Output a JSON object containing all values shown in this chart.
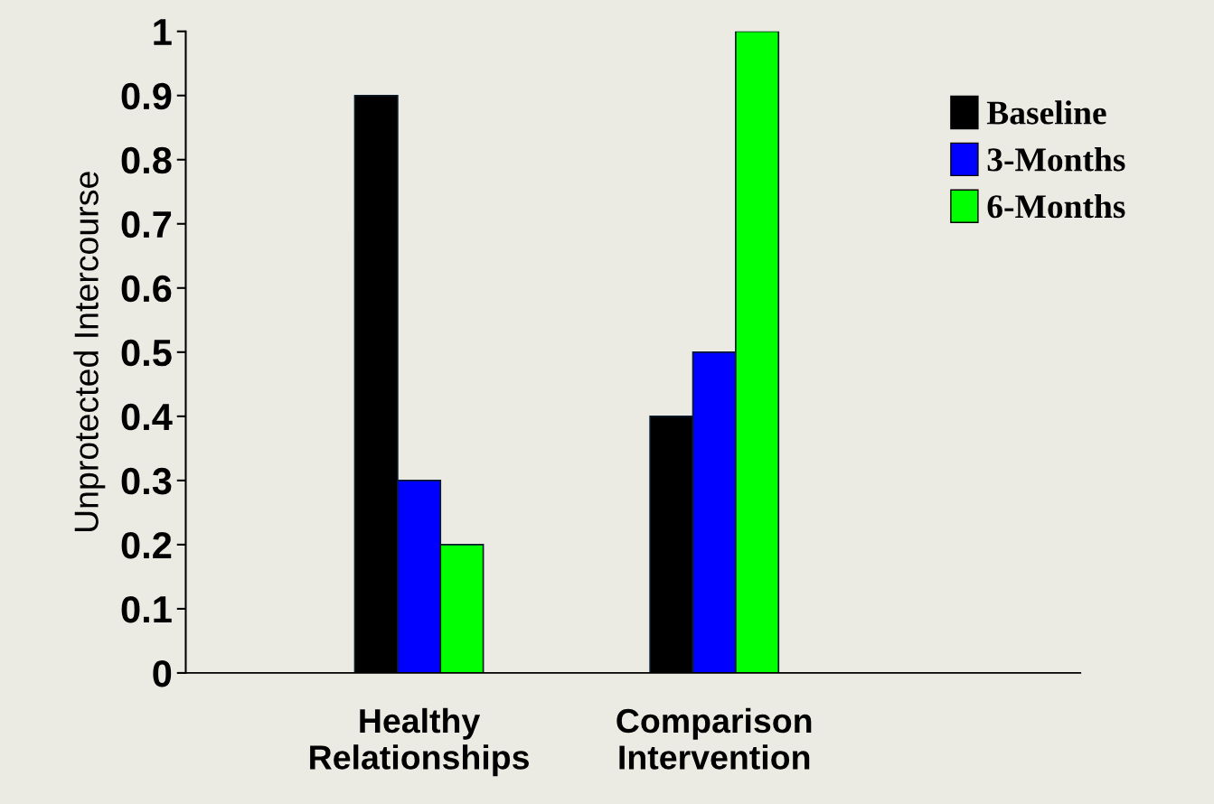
{
  "chart_data": {
    "type": "bar",
    "ylabel": "Unprotected Intercourse",
    "categories": [
      "Healthy\nRelationships",
      "Comparison\nIntervention"
    ],
    "series": [
      {
        "name": "Baseline",
        "color": "#000000",
        "values": [
          0.9,
          0.4
        ]
      },
      {
        "name": "3-Months",
        "color": "#0000ff",
        "values": [
          0.3,
          0.5
        ]
      },
      {
        "name": "6-Months",
        "color": "#00ff00",
        "values": [
          0.2,
          1
        ]
      }
    ],
    "ylim": [
      0,
      1
    ],
    "yticks": [
      0,
      0.1,
      0.2,
      0.3,
      0.4,
      0.5,
      0.6,
      0.7,
      0.8,
      0.9,
      1
    ],
    "grid": false,
    "legend": "top right"
  }
}
